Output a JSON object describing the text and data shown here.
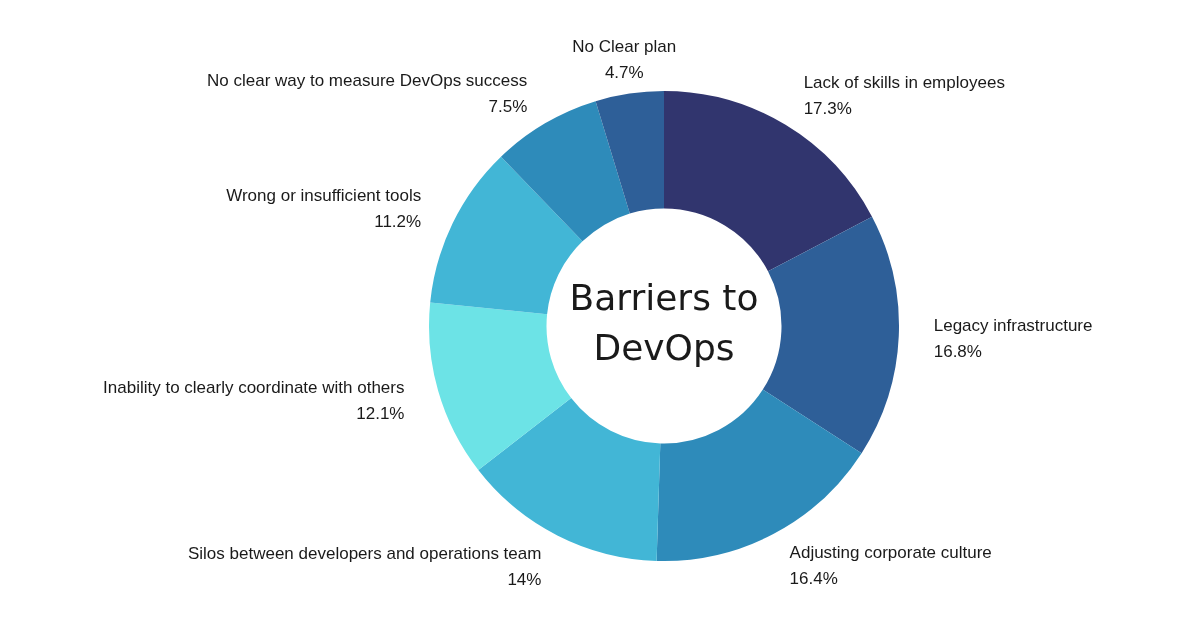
{
  "chart_data": {
    "type": "donut",
    "title": "Barriers to DevOps",
    "categories": [
      "Lack of skills in employees",
      "Legacy infrastructure",
      "Adjusting corporate culture",
      "Silos between developers and operations team",
      "Inability to clearly coordinate with others",
      "Wrong or insufficient tools",
      "No clear way to measure DevOps success",
      "No Clear plan"
    ],
    "values": [
      17.3,
      16.8,
      16.4,
      14,
      12.1,
      11.2,
      7.5,
      4.7
    ],
    "value_labels": [
      "17.3%",
      "16.8%",
      "16.4%",
      "14%",
      "12.1%",
      "11.2%",
      "7.5%",
      "4.7%"
    ],
    "colors": [
      "#31356e",
      "#2e5f98",
      "#2e8bba",
      "#42b6d6",
      "#6ce3e6",
      "#42b6d6",
      "#2e8bba",
      "#2e5f98"
    ]
  }
}
